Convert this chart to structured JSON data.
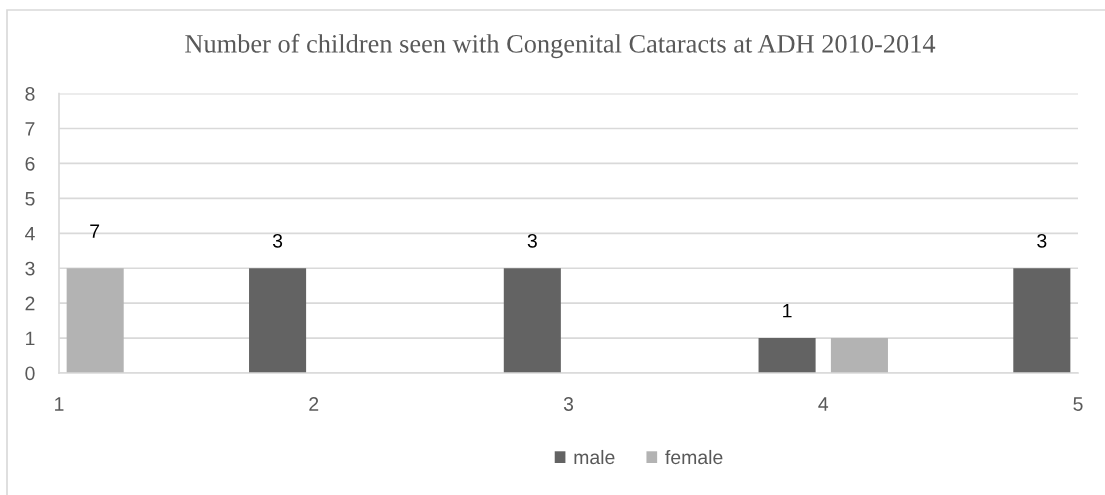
{
  "chart_data": {
    "type": "bar",
    "title": "Number of children seen with Congenital Cataracts at ADH 2010-2014",
    "x": [
      1,
      2,
      3,
      4,
      5
    ],
    "series": [
      {
        "name": "male",
        "color": "#636363",
        "values": [
          null,
          3,
          3,
          1,
          3
        ],
        "value_labels": [
          null,
          "3",
          "3",
          "1",
          "3"
        ]
      },
      {
        "name": "female",
        "color": "#b3b3b3",
        "values": [
          3,
          null,
          null,
          1,
          null
        ]
      }
    ],
    "annotations": [
      {
        "text": "7",
        "x": 1.14,
        "y": 3
      }
    ],
    "xlim": [
      1,
      5
    ],
    "xticks": [
      1,
      2,
      3,
      4,
      5
    ],
    "ylim": [
      0,
      8
    ],
    "yticks": [
      0,
      1,
      2,
      3,
      4,
      5,
      6,
      7,
      8
    ],
    "grid": "y",
    "legend": "bottom"
  }
}
